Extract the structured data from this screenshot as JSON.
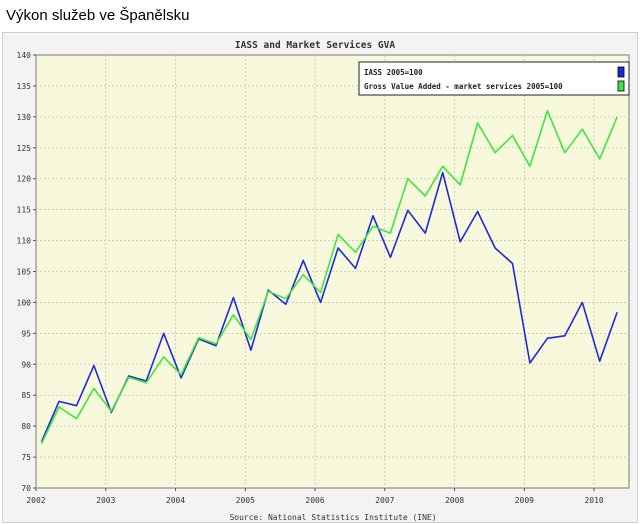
{
  "page": {
    "heading": "Výkon služeb ve Španělsku"
  },
  "chart_data": {
    "type": "line",
    "title": "IASS and Market Services GVA",
    "source": "Source: National Statistics Institute (INE)",
    "xlabel": "",
    "ylabel": "",
    "xlim": [
      2002,
      2010.5
    ],
    "ylim": [
      70,
      140
    ],
    "x_ticks": [
      2002,
      2003,
      2004,
      2005,
      2006,
      2007,
      2008,
      2009,
      2010
    ],
    "x_tick_labels": [
      "2002",
      "2003",
      "2004",
      "2005",
      "2006",
      "2007",
      "2008",
      "2009",
      "2010"
    ],
    "y_ticks": [
      70,
      75,
      80,
      85,
      90,
      95,
      100,
      105,
      110,
      115,
      120,
      125,
      130,
      135,
      140
    ],
    "y_tick_labels": [
      "70",
      "75",
      "80",
      "85",
      "90",
      "95",
      "100",
      "105",
      "110",
      "115",
      "120",
      "125",
      "130",
      "135",
      "140"
    ],
    "grid": true,
    "legend_position": "top-right",
    "x": [
      2002.08,
      2002.33,
      2002.58,
      2002.83,
      2003.08,
      2003.33,
      2003.58,
      2003.83,
      2004.08,
      2004.33,
      2004.58,
      2004.83,
      2005.08,
      2005.33,
      2005.58,
      2005.83,
      2006.08,
      2006.33,
      2006.58,
      2006.83,
      2007.08,
      2007.33,
      2007.58,
      2007.83,
      2008.08,
      2008.33,
      2008.58,
      2008.83,
      2009.08,
      2009.33,
      2009.58,
      2009.83,
      2010.08,
      2010.33
    ],
    "series": [
      {
        "name": "IASS 2005=100",
        "color": "#1f2ad9",
        "values": [
          77.5,
          84,
          83.3,
          89.8,
          82.2,
          88.1,
          87.3,
          95,
          87.8,
          94.1,
          93,
          100.8,
          92.3,
          102,
          99.7,
          106.8,
          100,
          108.8,
          105.5,
          114,
          107.3,
          114.9,
          111.2,
          121,
          109.8,
          114.7,
          108.8,
          106.3,
          90.2,
          94.2,
          94.6,
          100,
          90.5,
          98.4
        ]
      },
      {
        "name": "Gross Value Added - market services 2005=100",
        "color": "#3ee63e",
        "values": [
          77.2,
          83.1,
          81.2,
          86.1,
          82.4,
          87.9,
          87,
          91.2,
          88.3,
          94.3,
          93.3,
          98,
          94,
          101.8,
          100.6,
          104.5,
          101.6,
          111,
          108.1,
          112.3,
          111.2,
          120,
          117.2,
          122,
          119,
          129,
          124.2,
          127,
          122,
          131,
          124.2,
          128,
          123.2,
          130
        ]
      }
    ]
  }
}
